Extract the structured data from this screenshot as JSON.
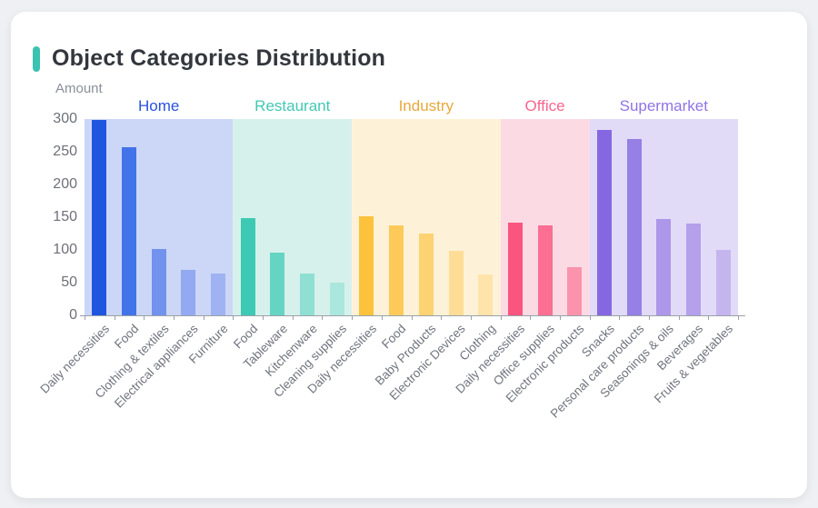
{
  "page": {
    "background": "#eef0f3",
    "card_background": "#ffffff"
  },
  "header": {
    "title": "Object Categories Distribution",
    "accent_color": "#3bc3b1"
  },
  "chart_data": {
    "type": "bar",
    "title": "Object Categories Distribution",
    "xlabel": "",
    "ylabel": "Amount",
    "ylim": [
      0,
      300
    ],
    "yticks": [
      0,
      50,
      100,
      150,
      200,
      250,
      300
    ],
    "grid": false,
    "legend_position": "top-inside",
    "axis": {
      "line_color": "#9aa0a8",
      "xtick_label_color": "#70747e",
      "ytick_label_color": "#6e7079",
      "xtick_label_rotation_deg": 45
    },
    "groups": [
      {
        "name": "Home",
        "label_color": "#2b50e0",
        "band_color": "#ccd6f6",
        "categories": [
          "Daily necessities",
          "Food",
          "Clothing & textiles",
          "Electrical appliances",
          "Furniture"
        ],
        "values": [
          298,
          257,
          101,
          70,
          64
        ],
        "bar_colors": [
          "#1f56e0",
          "#4273e8",
          "#7292ee",
          "#93a9f1",
          "#9fb2f2"
        ]
      },
      {
        "name": "Restaurant",
        "label_color": "#41c8b4",
        "band_color": "#d6f1ec",
        "categories": [
          "Food",
          "Tableware",
          "Kitchenware",
          "Cleaning supplies"
        ],
        "values": [
          148,
          96,
          64,
          50
        ],
        "bar_colors": [
          "#3ec9b4",
          "#66d4c3",
          "#8fdfd2",
          "#abe7dd"
        ]
      },
      {
        "name": "Industry",
        "label_color": "#e9a83b",
        "band_color": "#fdf2d7",
        "categories": [
          "Daily necessities",
          "Food",
          "Baby Products",
          "Electronic Devices",
          "Clothing"
        ],
        "values": [
          151,
          138,
          125,
          99,
          63
        ],
        "bar_colors": [
          "#fdc23c",
          "#fdca5a",
          "#fdd272",
          "#fedd96",
          "#fee3aa"
        ]
      },
      {
        "name": "Office",
        "label_color": "#f9658d",
        "band_color": "#fcdae4",
        "categories": [
          "Daily necessities",
          "Office supplies",
          "Electronic products"
        ],
        "values": [
          141,
          138,
          74
        ],
        "bar_colors": [
          "#f9557f",
          "#fa6f93",
          "#fb93ad"
        ]
      },
      {
        "name": "Supermarket",
        "label_color": "#8f74e4",
        "band_color": "#e1dbf7",
        "categories": [
          "Snacks",
          "Personal care products",
          "Seasonings & oils",
          "Beverages",
          "Fruits & vegetables"
        ],
        "values": [
          283,
          269,
          147,
          140,
          100
        ],
        "bar_colors": [
          "#8568e1",
          "#9680e5",
          "#ad97e9",
          "#b4a0eb",
          "#c5b5ef"
        ]
      }
    ]
  }
}
